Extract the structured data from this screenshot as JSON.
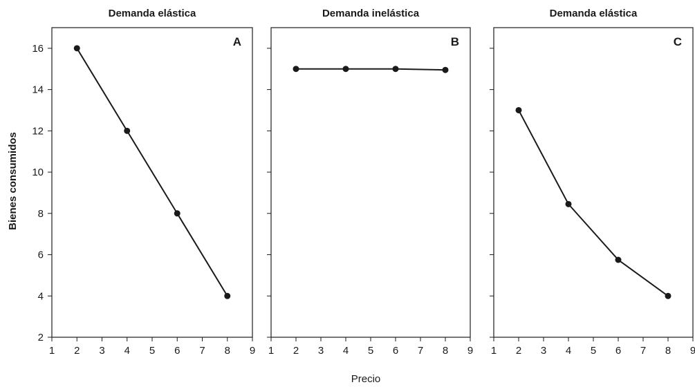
{
  "figure": {
    "ylabel": "Bienes consumidos",
    "xlabel": "Precio",
    "line_color": "#1a1a1a",
    "point_color": "#1a1a1a"
  },
  "chart_data": [
    {
      "type": "line",
      "title": "Demanda elástica",
      "panel_label": "A",
      "x": [
        2,
        4,
        6,
        8
      ],
      "y": [
        16,
        12,
        8,
        4
      ],
      "xlim": [
        1,
        9
      ],
      "ylim": [
        2,
        17
      ],
      "xticks": [
        1,
        2,
        3,
        4,
        5,
        6,
        7,
        8,
        9
      ],
      "yticks": [
        2,
        4,
        6,
        8,
        10,
        12,
        14,
        16
      ],
      "grid": false
    },
    {
      "type": "line",
      "title": "Demanda inelástica",
      "panel_label": "B",
      "x": [
        2,
        4,
        6,
        8
      ],
      "y": [
        15,
        15,
        15,
        14.95
      ],
      "xlim": [
        1,
        9
      ],
      "ylim": [
        2,
        17
      ],
      "xticks": [
        1,
        2,
        3,
        4,
        5,
        6,
        7,
        8,
        9
      ],
      "yticks": [
        2,
        4,
        6,
        8,
        10,
        12,
        14,
        16
      ],
      "grid": false
    },
    {
      "type": "line",
      "title": "Demanda elástica",
      "panel_label": "C",
      "x": [
        2,
        4,
        6,
        8
      ],
      "y": [
        13,
        8.45,
        5.75,
        4
      ],
      "xlim": [
        1,
        9
      ],
      "ylim": [
        2,
        17
      ],
      "xticks": [
        1,
        2,
        3,
        4,
        5,
        6,
        7,
        8,
        9
      ],
      "yticks": [
        2,
        4,
        6,
        8,
        10,
        12,
        14,
        16
      ],
      "grid": false
    }
  ]
}
